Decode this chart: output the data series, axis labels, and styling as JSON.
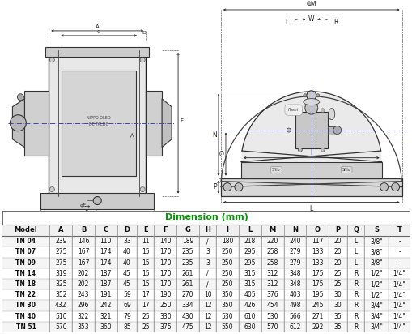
{
  "title": "Dimension (mm)",
  "title_color": "#009900",
  "headers": [
    "Model",
    "A",
    "B",
    "C",
    "D",
    "E",
    "F",
    "G",
    "H",
    "I",
    "L",
    "M",
    "N",
    "O",
    "P",
    "Q",
    "S",
    "T"
  ],
  "rows": [
    [
      "TN 04",
      "239",
      "146",
      "110",
      "33",
      "11",
      "140",
      "189",
      "/",
      "180",
      "218",
      "220",
      "240",
      "117",
      "20",
      "L",
      "3/8\"",
      "-"
    ],
    [
      "TN 07",
      "275",
      "167",
      "174",
      "40",
      "15",
      "170",
      "235",
      "3",
      "250",
      "295",
      "258",
      "279",
      "133",
      "20",
      "L",
      "3/8\"",
      "-"
    ],
    [
      "TN 09",
      "275",
      "167",
      "174",
      "40",
      "15",
      "170",
      "235",
      "3",
      "250",
      "295",
      "258",
      "279",
      "133",
      "20",
      "L",
      "3/8\"",
      "-"
    ],
    [
      "TN 14",
      "319",
      "202",
      "187",
      "45",
      "15",
      "170",
      "261",
      "/",
      "250",
      "315",
      "312",
      "348",
      "175",
      "25",
      "R",
      "1/2\"",
      "1/4\""
    ],
    [
      "TN 18",
      "325",
      "202",
      "187",
      "45",
      "15",
      "170",
      "261",
      "/",
      "250",
      "315",
      "312",
      "348",
      "175",
      "25",
      "R",
      "1/2\"",
      "1/4\""
    ],
    [
      "TN 22",
      "352",
      "243",
      "191",
      "59",
      "17",
      "190",
      "270",
      "10",
      "350",
      "405",
      "376",
      "403",
      "195",
      "30",
      "R",
      "1/2\"",
      "1/4\""
    ],
    [
      "TN 30",
      "432",
      "296",
      "242",
      "69",
      "17",
      "250",
      "334",
      "12",
      "350",
      "426",
      "454",
      "498",
      "245",
      "30",
      "R",
      "3/4\"",
      "1/4\""
    ],
    [
      "TN 40",
      "510",
      "322",
      "321",
      "79",
      "25",
      "330",
      "430",
      "12",
      "530",
      "610",
      "530",
      "566",
      "271",
      "35",
      "R",
      "3/4\"",
      "1/4\""
    ],
    [
      "TN 51",
      "570",
      "353",
      "360",
      "85",
      "25",
      "375",
      "475",
      "12",
      "550",
      "630",
      "570",
      "612",
      "292",
      "35",
      "R",
      "3/4\"",
      "1/4\""
    ]
  ],
  "col_widths_raw": [
    1.8,
    0.85,
    0.85,
    0.85,
    0.75,
    0.65,
    0.85,
    0.85,
    0.65,
    0.85,
    0.85,
    0.85,
    0.85,
    0.85,
    0.7,
    0.65,
    0.9,
    0.85
  ]
}
